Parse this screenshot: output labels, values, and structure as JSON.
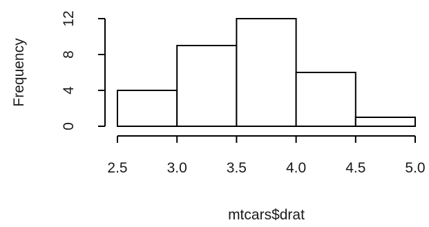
{
  "chart_data": {
    "type": "bar",
    "subtype": "histogram",
    "title": "",
    "xlabel": "mtcars$drat",
    "ylabel": "Frequency",
    "bins": [
      {
        "start": 2.5,
        "end": 3.0,
        "count": 4
      },
      {
        "start": 3.0,
        "end": 3.5,
        "count": 9
      },
      {
        "start": 3.5,
        "end": 4.0,
        "count": 12
      },
      {
        "start": 4.0,
        "end": 4.5,
        "count": 6
      },
      {
        "start": 4.5,
        "end": 5.0,
        "count": 1
      }
    ],
    "xlim": [
      2.5,
      5.0
    ],
    "ylim": [
      0,
      12
    ],
    "x_ticks": [
      "2.5",
      "3.0",
      "3.5",
      "4.0",
      "4.5",
      "5.0"
    ],
    "y_ticks": [
      "0",
      "4",
      "8",
      "12"
    ],
    "grid": false,
    "legend": "none",
    "colors": {
      "bar_fill": "#ffffff",
      "bar_stroke": "#000000"
    }
  }
}
